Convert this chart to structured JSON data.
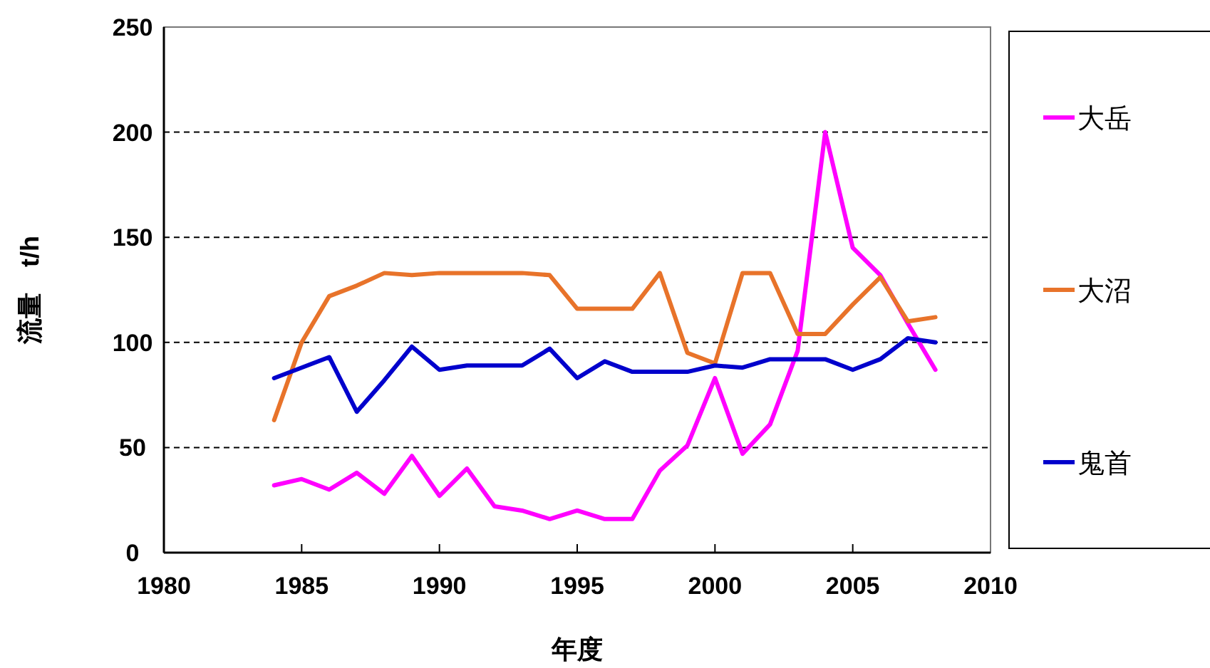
{
  "chart_data": {
    "type": "line",
    "xlabel": "年度",
    "ylabel": "流量　t/h",
    "x": [
      1984,
      1985,
      1986,
      1987,
      1988,
      1989,
      1990,
      1991,
      1992,
      1993,
      1994,
      1995,
      1996,
      1997,
      1998,
      1999,
      2000,
      2001,
      2002,
      2003,
      2004,
      2005,
      2006,
      2007,
      2008
    ],
    "series": [
      {
        "name": "大岳",
        "color": "#ff00ff",
        "values": [
          32,
          35,
          30,
          38,
          28,
          46,
          27,
          40,
          22,
          20,
          16,
          20,
          16,
          16,
          39,
          51,
          83,
          47,
          61,
          96,
          200,
          145,
          132,
          109,
          87
        ]
      },
      {
        "name": "大沼",
        "color": "#e8732a",
        "values": [
          63,
          100,
          122,
          127,
          133,
          132,
          133,
          133,
          133,
          133,
          132,
          116,
          116,
          116,
          133,
          95,
          90,
          133,
          133,
          104,
          104,
          118,
          131,
          110,
          112
        ]
      },
      {
        "name": "鬼首",
        "color": "#0000cc",
        "values": [
          83,
          88,
          93,
          67,
          82,
          98,
          87,
          89,
          89,
          89,
          97,
          83,
          91,
          86,
          86,
          86,
          89,
          88,
          92,
          92,
          92,
          87,
          92,
          102,
          100
        ]
      }
    ],
    "xlim": [
      1980,
      2010
    ],
    "xticks": [
      1980,
      1985,
      1990,
      1995,
      2000,
      2005,
      2010
    ],
    "ylim": [
      0,
      250
    ],
    "yticks": [
      0,
      50,
      100,
      150,
      200,
      250
    ],
    "grid": "y",
    "legend": "right",
    "line_style": "solid"
  }
}
